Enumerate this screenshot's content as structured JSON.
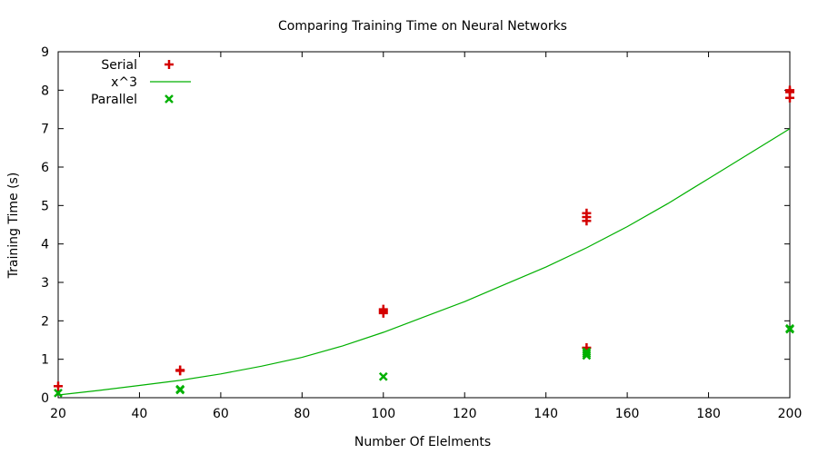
{
  "chart_data": {
    "type": "scatter",
    "title": "Comparing Training Time on Neural Networks",
    "xlabel": "Number Of Elelments",
    "ylabel": "Training Time (s)",
    "xlim": [
      20,
      200
    ],
    "ylim": [
      0,
      9
    ],
    "xticks": [
      20,
      40,
      60,
      80,
      100,
      120,
      140,
      160,
      180,
      200
    ],
    "yticks": [
      0,
      1,
      2,
      3,
      4,
      5,
      6,
      7,
      8,
      9
    ],
    "grid": false,
    "legend_position": "top-left",
    "series": [
      {
        "name": "Serial",
        "kind": "points",
        "marker": "plus",
        "color": "#d40000",
        "x": [
          20,
          50,
          50,
          100,
          100,
          100,
          150,
          150,
          150,
          150,
          200,
          200,
          200
        ],
        "y": [
          0.3,
          0.7,
          0.72,
          2.2,
          2.25,
          2.3,
          1.3,
          4.6,
          4.7,
          4.8,
          7.8,
          7.95,
          8.0
        ]
      },
      {
        "name": "x^3",
        "kind": "line",
        "color": "#00b000",
        "x": [
          20,
          30,
          40,
          50,
          60,
          70,
          80,
          90,
          100,
          110,
          120,
          130,
          140,
          150,
          160,
          170,
          180,
          190,
          200
        ],
        "y": [
          0.07,
          0.19,
          0.32,
          0.45,
          0.62,
          0.82,
          1.05,
          1.35,
          1.7,
          2.1,
          2.5,
          2.95,
          3.4,
          3.9,
          4.45,
          5.05,
          5.7,
          6.35,
          7.0
        ]
      },
      {
        "name": "Parallel",
        "kind": "points",
        "marker": "cross",
        "color": "#00b000",
        "x": [
          20,
          50,
          50,
          100,
          150,
          150,
          150,
          200,
          200
        ],
        "y": [
          0.12,
          0.2,
          0.22,
          0.55,
          1.1,
          1.15,
          1.2,
          1.78,
          1.8
        ]
      }
    ]
  }
}
